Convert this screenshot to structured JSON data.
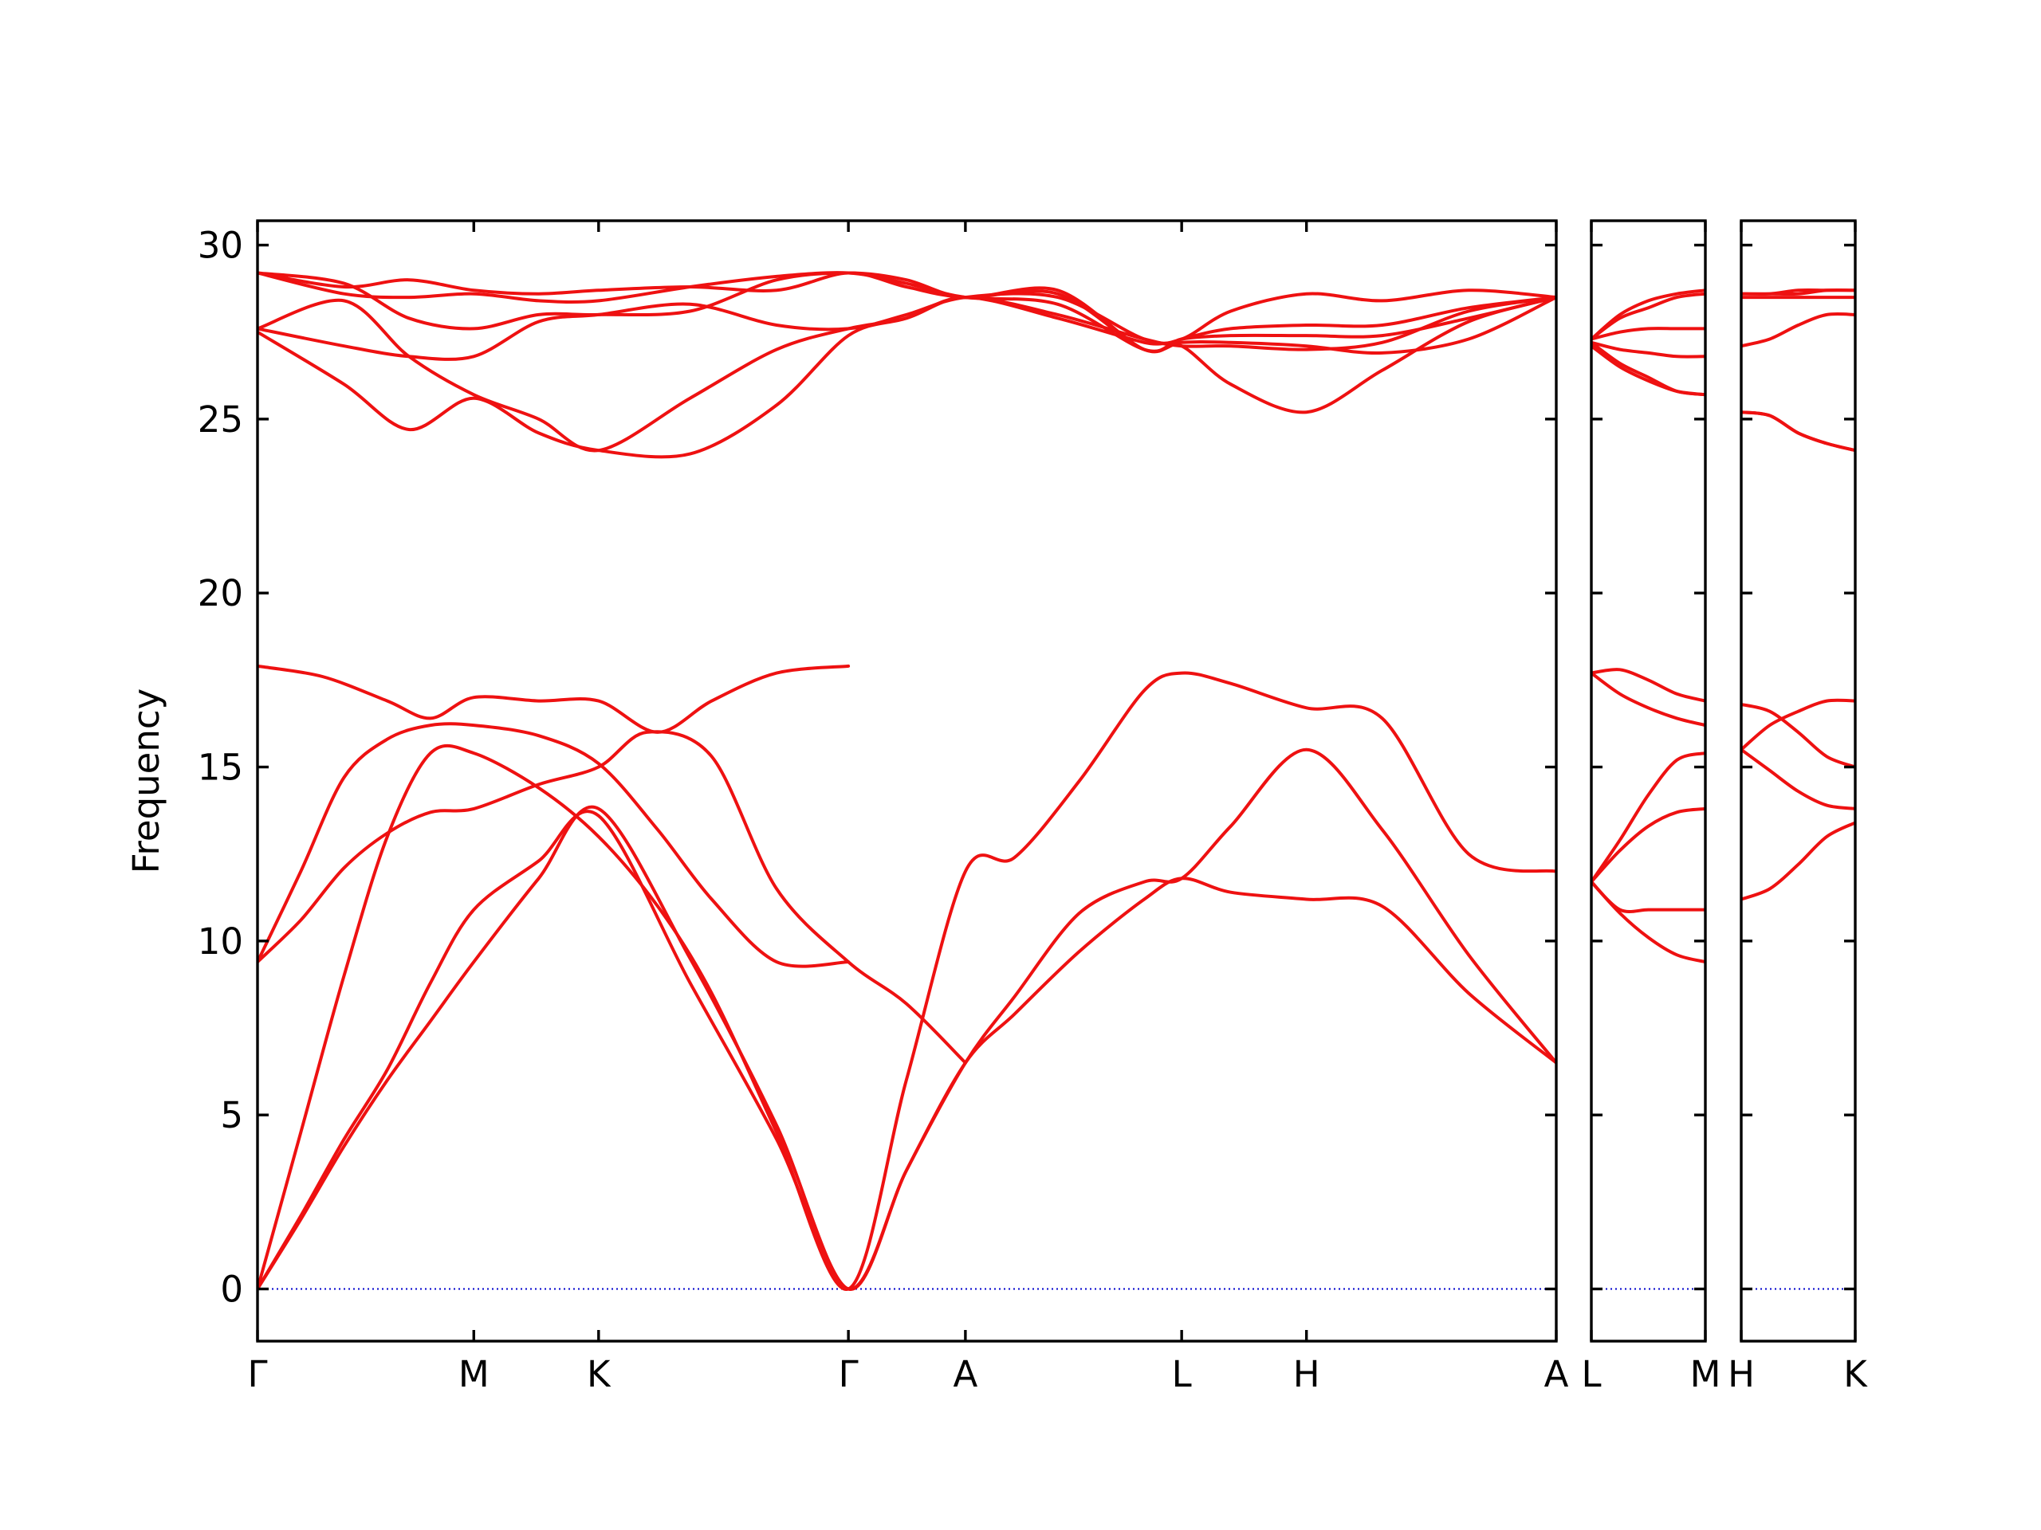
{
  "chart_data": {
    "type": "line",
    "ylabel": "Frequency",
    "xlabel": "",
    "ylim": [
      -1.5,
      30.7
    ],
    "yticks": [
      0,
      5,
      10,
      15,
      20,
      25,
      30
    ],
    "colors": {
      "bands": "#ee1111",
      "zero_line": "#0000cc"
    },
    "grid": false,
    "panels": [
      {
        "labels": [
          "Γ",
          "M",
          "K",
          "Γ",
          "A",
          "L",
          "H",
          "A"
        ],
        "label_pos": [
          0,
          1.0,
          1.577,
          2.732,
          3.273,
          4.273,
          4.85,
          6.005
        ],
        "series": [
          {
            "name": "",
            "x": [
              0,
              0.2,
              0.4,
              0.6,
              0.8,
              1.0,
              1.3,
              1.577,
              2.0,
              2.4,
              2.732,
              3.0,
              3.273,
              3.5,
              3.8,
              4.1,
              4.273,
              4.5,
              4.85,
              5.2,
              5.6,
              6.005
            ],
            "y": [
              0,
              2.0,
              4.1,
              6.0,
              7.7,
              9.4,
              11.8,
              13.8,
              9.5,
              4.7,
              0,
              3.4,
              6.5,
              7.9,
              9.7,
              11.2,
              11.8,
              11.4,
              11.2,
              11.0,
              8.5,
              6.5
            ]
          },
          {
            "name": "",
            "x": [
              0,
              0.2,
              0.4,
              0.6,
              0.8,
              1.0,
              1.3,
              1.577,
              2.0,
              2.4,
              2.732,
              3.0,
              3.273,
              3.5,
              3.8,
              4.1,
              4.273,
              4.5,
              4.85,
              5.2,
              5.6,
              6.005
            ],
            "y": [
              0,
              2.1,
              4.3,
              6.3,
              8.8,
              10.9,
              12.3,
              13.6,
              8.8,
              4.3,
              0,
              3.4,
              6.5,
              8.4,
              10.8,
              11.7,
              11.8,
              13.3,
              15.5,
              13.2,
              9.6,
              6.5
            ]
          },
          {
            "name": "",
            "x": [
              0,
              0.2,
              0.4,
              0.6,
              0.8,
              1.0,
              1.3,
              1.577,
              1.85,
              2.1,
              2.4,
              2.732,
              3.0,
              3.273,
              3.5,
              3.8,
              4.1,
              4.273,
              4.5,
              4.85,
              5.2,
              5.6,
              6.005
            ],
            "y": [
              0,
              4.5,
              9.0,
              13.0,
              15.4,
              15.4,
              14.4,
              13.0,
              11.0,
              8.5,
              4.5,
              0,
              6.0,
              12.0,
              12.4,
              14.6,
              17.2,
              17.7,
              17.4,
              16.7,
              16.4,
              12.5,
              12.0
            ]
          },
          {
            "name": "",
            "x": [
              0,
              0.2,
              0.4,
              0.6,
              0.8,
              1.0,
              1.3,
              1.577,
              1.8,
              2.1,
              2.4,
              2.732,
              3.0,
              3.273
            ],
            "y": [
              9.4,
              10.6,
              12.1,
              13.1,
              13.7,
              13.8,
              14.5,
              15.0,
              16.0,
              15.3,
              11.5,
              9.4,
              8.2,
              6.5
            ]
          },
          {
            "name": "",
            "x": [
              0,
              0.2,
              0.4,
              0.6,
              0.8,
              1.0,
              1.3,
              1.577,
              1.85,
              2.1,
              2.4,
              2.732
            ],
            "y": [
              9.4,
              12.0,
              14.7,
              15.8,
              16.2,
              16.2,
              15.9,
              15.1,
              13.2,
              11.2,
              9.4,
              9.4
            ]
          },
          {
            "name": "",
            "x": [
              0,
              0.3,
              0.6,
              0.8,
              1.0,
              1.3,
              1.577,
              1.85,
              2.1,
              2.4,
              2.732
            ],
            "y": [
              17.9,
              17.6,
              16.9,
              16.4,
              17.0,
              16.9,
              16.9,
              16.0,
              16.9,
              17.7,
              17.9
            ]
          },
          {
            "name": "",
            "x": [
              0,
              0.4,
              0.7,
              1.0,
              1.3,
              1.577,
              2.0,
              2.4,
              2.732,
              3.0,
              3.273,
              3.7,
              4.1,
              4.273,
              4.5,
              4.85,
              5.2,
              5.6,
              6.005
            ],
            "y": [
              27.5,
              26.0,
              24.7,
              25.6,
              24.6,
              24.1,
              24.0,
              25.4,
              27.4,
              27.9,
              28.5,
              27.9,
              27.2,
              27.1,
              26.0,
              25.2,
              26.4,
              27.8,
              28.5
            ]
          },
          {
            "name": "",
            "x": [
              0,
              0.4,
              0.7,
              1.0,
              1.3,
              1.577,
              2.0,
              2.4,
              2.732,
              3.0,
              3.273,
              3.7,
              4.1,
              4.273,
              4.5,
              4.85,
              5.2,
              5.6,
              6.005
            ],
            "y": [
              27.6,
              28.4,
              26.8,
              25.7,
              25.0,
              24.1,
              25.6,
              27.0,
              27.6,
              27.9,
              28.5,
              28.0,
              27.3,
              27.1,
              27.1,
              27.0,
              27.2,
              28.1,
              28.5
            ]
          },
          {
            "name": "",
            "x": [
              0,
              0.4,
              0.7,
              1.0,
              1.3,
              1.577,
              2.0,
              2.4,
              2.732,
              3.0,
              3.273,
              3.7,
              4.1,
              4.273,
              4.5,
              4.85,
              5.2,
              5.6,
              6.005
            ],
            "y": [
              27.6,
              27.1,
              26.8,
              26.8,
              27.8,
              28.0,
              28.3,
              27.7,
              27.6,
              28.0,
              28.5,
              28.5,
              27.3,
              27.3,
              28.1,
              28.6,
              28.4,
              28.7,
              28.5
            ]
          },
          {
            "name": "",
            "x": [
              0,
              0.4,
              0.7,
              1.0,
              1.3,
              1.577,
              2.0,
              2.4,
              2.732,
              3.0,
              3.273,
              3.7,
              4.1,
              4.273,
              4.5,
              4.85,
              5.2,
              5.6,
              6.005
            ],
            "y": [
              29.2,
              28.9,
              27.9,
              27.6,
              28.0,
              28.0,
              28.1,
              29.0,
              29.2,
              29.0,
              28.5,
              28.7,
              27.0,
              27.3,
              27.6,
              27.7,
              27.7,
              28.2,
              28.5
            ]
          },
          {
            "name": "",
            "x": [
              0,
              0.4,
              0.7,
              1.0,
              1.3,
              1.577,
              2.0,
              2.4,
              2.732,
              3.0,
              3.273,
              3.7,
              4.1,
              4.273,
              4.5,
              4.85,
              5.2,
              5.6,
              6.005
            ],
            "y": [
              29.2,
              28.6,
              28.5,
              28.6,
              28.4,
              28.4,
              28.8,
              29.1,
              29.2,
              28.9,
              28.5,
              28.3,
              27.0,
              27.2,
              27.2,
              27.1,
              26.9,
              27.3,
              28.5
            ]
          },
          {
            "name": "",
            "x": [
              0,
              0.4,
              0.7,
              1.0,
              1.3,
              1.577,
              2.0,
              2.4,
              2.732,
              3.0,
              3.273,
              3.7,
              4.1,
              4.273,
              4.5,
              4.85,
              5.2,
              5.6,
              6.005
            ],
            "y": [
              29.2,
              28.8,
              29.0,
              28.7,
              28.6,
              28.7,
              28.8,
              28.7,
              29.2,
              28.8,
              28.5,
              28.6,
              27.0,
              27.3,
              27.4,
              27.4,
              27.4,
              27.9,
              28.5
            ]
          }
        ]
      },
      {
        "labels": [
          "L",
          "M"
        ],
        "label_pos": [
          0,
          1
        ],
        "series": [
          {
            "name": "",
            "x": [
              0,
              0.25,
              0.5,
              0.75,
              1
            ],
            "y": [
              11.7,
              10.9,
              10.9,
              10.9,
              10.9
            ]
          },
          {
            "name": "",
            "x": [
              0,
              0.25,
              0.5,
              0.75,
              1
            ],
            "y": [
              11.7,
              10.8,
              10.1,
              9.6,
              9.4
            ]
          },
          {
            "name": "",
            "x": [
              0,
              0.25,
              0.5,
              0.75,
              1
            ],
            "y": [
              11.7,
              12.6,
              13.3,
              13.7,
              13.8
            ]
          },
          {
            "name": "",
            "x": [
              0,
              0.25,
              0.5,
              0.75,
              1
            ],
            "y": [
              11.7,
              12.9,
              14.2,
              15.2,
              15.4
            ]
          },
          {
            "name": "",
            "x": [
              0,
              0.25,
              0.5,
              0.75,
              1
            ],
            "y": [
              17.7,
              17.1,
              16.7,
              16.4,
              16.2
            ]
          },
          {
            "name": "",
            "x": [
              0,
              0.25,
              0.5,
              0.75,
              1
            ],
            "y": [
              17.7,
              17.8,
              17.5,
              17.1,
              16.9
            ]
          },
          {
            "name": "",
            "x": [
              0,
              0.25,
              0.5,
              0.75,
              1
            ],
            "y": [
              27.1,
              26.5,
              26.1,
              25.8,
              25.7
            ]
          },
          {
            "name": "",
            "x": [
              0,
              0.25,
              0.5,
              0.75,
              1
            ],
            "y": [
              27.2,
              26.6,
              26.2,
              25.8,
              25.7
            ]
          },
          {
            "name": "",
            "x": [
              0,
              0.25,
              0.5,
              0.75,
              1
            ],
            "y": [
              27.2,
              27.0,
              26.9,
              26.8,
              26.8
            ]
          },
          {
            "name": "",
            "x": [
              0,
              0.25,
              0.5,
              0.75,
              1
            ],
            "y": [
              27.3,
              27.5,
              27.6,
              27.6,
              27.6
            ]
          },
          {
            "name": "",
            "x": [
              0,
              0.25,
              0.5,
              0.75,
              1
            ],
            "y": [
              27.3,
              27.9,
              28.2,
              28.5,
              28.6
            ]
          },
          {
            "name": "",
            "x": [
              0,
              0.25,
              0.5,
              0.75,
              1
            ],
            "y": [
              27.3,
              28.0,
              28.4,
              28.6,
              28.7
            ]
          }
        ]
      },
      {
        "labels": [
          "H",
          "K"
        ],
        "label_pos": [
          0,
          1
        ],
        "series": [
          {
            "name": "",
            "x": [
              0,
              0.25,
              0.5,
              0.75,
              1
            ],
            "y": [
              11.2,
              11.5,
              12.2,
              13.0,
              13.4
            ]
          },
          {
            "name": "",
            "x": [
              0,
              0.25,
              0.5,
              0.75,
              1
            ],
            "y": [
              15.5,
              14.9,
              14.3,
              13.9,
              13.8
            ]
          },
          {
            "name": "",
            "x": [
              0,
              0.25,
              0.5,
              0.75,
              1
            ],
            "y": [
              15.5,
              16.2,
              16.6,
              16.9,
              16.9
            ]
          },
          {
            "name": "",
            "x": [
              0,
              0.25,
              0.5,
              0.75,
              1
            ],
            "y": [
              16.8,
              16.6,
              16.0,
              15.3,
              15.0
            ]
          },
          {
            "name": "",
            "x": [
              0,
              0.25,
              0.5,
              0.75,
              1
            ],
            "y": [
              25.2,
              25.1,
              24.6,
              24.3,
              24.1
            ]
          },
          {
            "name": "",
            "x": [
              0,
              0.25,
              0.5,
              0.75,
              1
            ],
            "y": [
              25.2,
              25.1,
              24.6,
              24.3,
              24.1
            ]
          },
          {
            "name": "",
            "x": [
              0,
              0.25,
              0.5,
              0.75,
              1
            ],
            "y": [
              27.1,
              27.3,
              27.7,
              28.0,
              28.0
            ]
          },
          {
            "name": "",
            "x": [
              0,
              0.25,
              0.5,
              0.75,
              1
            ],
            "y": [
              28.5,
              28.5,
              28.5,
              28.5,
              28.5
            ]
          },
          {
            "name": "",
            "x": [
              0,
              0.25,
              0.5,
              0.75,
              1
            ],
            "y": [
              28.6,
              28.6,
              28.7,
              28.7,
              28.7
            ]
          },
          {
            "name": "",
            "x": [
              0,
              0.25,
              0.5,
              0.75,
              1
            ],
            "y": [
              28.6,
              28.6,
              28.6,
              28.7,
              28.7
            ]
          }
        ]
      }
    ]
  }
}
